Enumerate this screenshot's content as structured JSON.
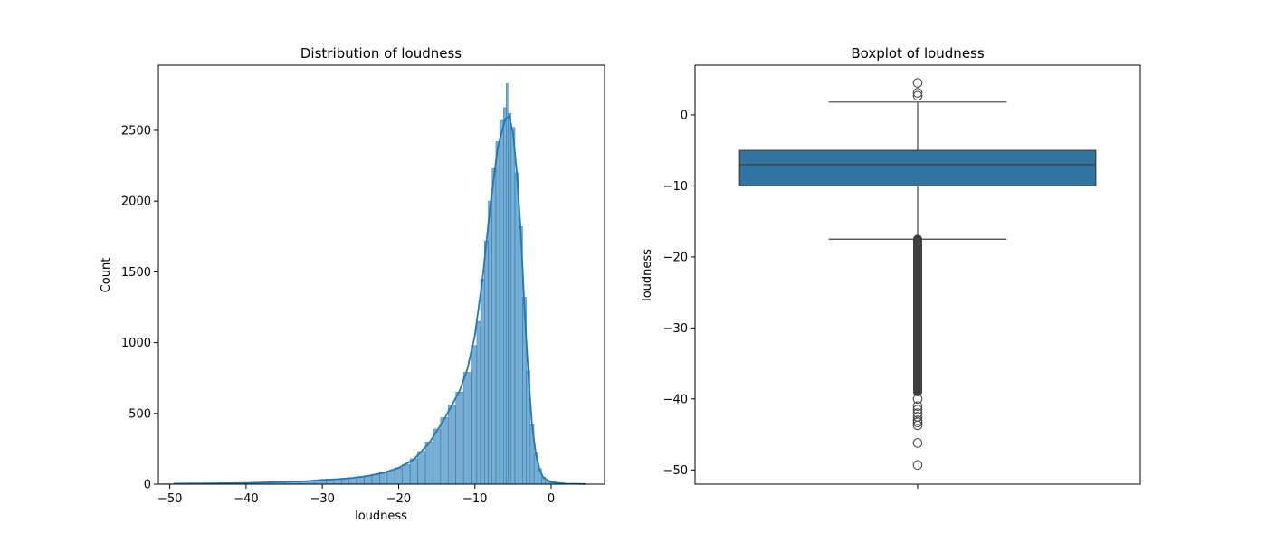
{
  "figure": {
    "background": "#ffffff"
  },
  "chart_data": [
    {
      "type": "histogram",
      "title": "Distribution of loudness",
      "xlabel": "loudness",
      "ylabel": "Count",
      "xlim": [
        -51.5,
        7.0
      ],
      "ylim": [
        0,
        2960
      ],
      "xticks": [
        -50,
        -40,
        -30,
        -20,
        -10,
        0
      ],
      "xtick_labels": [
        "−50",
        "−40",
        "−30",
        "−20",
        "−10",
        "0"
      ],
      "yticks": [
        0,
        500,
        1000,
        1500,
        2000,
        2500
      ],
      "ytick_labels": [
        "0",
        "500",
        "1000",
        "1500",
        "2000",
        "2500"
      ],
      "bar_color": "#1f77b4",
      "kde_color": "#1f77b4",
      "grid": false,
      "legend": "none",
      "bins": [
        {
          "x": -49.5,
          "count": 3
        },
        {
          "x": -46,
          "count": 5
        },
        {
          "x": -42,
          "count": 7
        },
        {
          "x": -38,
          "count": 10
        },
        {
          "x": -36,
          "count": 14
        },
        {
          "x": -34,
          "count": 18
        },
        {
          "x": -32,
          "count": 22
        },
        {
          "x": -30,
          "count": 30
        },
        {
          "x": -29,
          "count": 35
        },
        {
          "x": -28,
          "count": 34
        },
        {
          "x": -27,
          "count": 40
        },
        {
          "x": -26,
          "count": 45
        },
        {
          "x": -25,
          "count": 52
        },
        {
          "x": -24,
          "count": 60
        },
        {
          "x": -23,
          "count": 70
        },
        {
          "x": -22,
          "count": 82
        },
        {
          "x": -21,
          "count": 95
        },
        {
          "x": -20,
          "count": 115
        },
        {
          "x": -19,
          "count": 140
        },
        {
          "x": -18,
          "count": 180
        },
        {
          "x": -17,
          "count": 230
        },
        {
          "x": -16,
          "count": 300
        },
        {
          "x": -15,
          "count": 390
        },
        {
          "x": -14,
          "count": 470
        },
        {
          "x": -13,
          "count": 560
        },
        {
          "x": -12,
          "count": 650
        },
        {
          "x": -11,
          "count": 790
        },
        {
          "x": -10,
          "count": 980
        },
        {
          "x": -9.5,
          "count": 1150
        },
        {
          "x": -9,
          "count": 1450
        },
        {
          "x": -8.5,
          "count": 1720
        },
        {
          "x": -8,
          "count": 2000
        },
        {
          "x": -7.5,
          "count": 2230
        },
        {
          "x": -7,
          "count": 2420
        },
        {
          "x": -6.5,
          "count": 2570
        },
        {
          "x": -6,
          "count": 2660
        },
        {
          "x": -5.8,
          "count": 2830
        },
        {
          "x": -5.5,
          "count": 2620
        },
        {
          "x": -5,
          "count": 2520
        },
        {
          "x": -4.5,
          "count": 2200
        },
        {
          "x": -4,
          "count": 1820
        },
        {
          "x": -3.5,
          "count": 1320
        },
        {
          "x": -3,
          "count": 800
        },
        {
          "x": -2.5,
          "count": 420
        },
        {
          "x": -2,
          "count": 220
        },
        {
          "x": -1.5,
          "count": 110
        },
        {
          "x": -1,
          "count": 50
        },
        {
          "x": -0.5,
          "count": 22
        },
        {
          "x": 0,
          "count": 12
        },
        {
          "x": 1,
          "count": 5
        },
        {
          "x": 2.5,
          "count": 2
        },
        {
          "x": 4.5,
          "count": 1
        }
      ],
      "kde": [
        {
          "x": -49.5,
          "y": 4
        },
        {
          "x": -45,
          "y": 5
        },
        {
          "x": -40,
          "y": 8
        },
        {
          "x": -35,
          "y": 16
        },
        {
          "x": -32,
          "y": 22
        },
        {
          "x": -30,
          "y": 30
        },
        {
          "x": -28,
          "y": 35
        },
        {
          "x": -26,
          "y": 44
        },
        {
          "x": -24,
          "y": 58
        },
        {
          "x": -22,
          "y": 80
        },
        {
          "x": -20,
          "y": 115
        },
        {
          "x": -18,
          "y": 175
        },
        {
          "x": -16,
          "y": 290
        },
        {
          "x": -14,
          "y": 460
        },
        {
          "x": -12,
          "y": 660
        },
        {
          "x": -11,
          "y": 810
        },
        {
          "x": -10,
          "y": 1050
        },
        {
          "x": -9,
          "y": 1450
        },
        {
          "x": -8,
          "y": 1960
        },
        {
          "x": -7,
          "y": 2380
        },
        {
          "x": -6,
          "y": 2580
        },
        {
          "x": -5.5,
          "y": 2600
        },
        {
          "x": -5,
          "y": 2480
        },
        {
          "x": -4.5,
          "y": 2200
        },
        {
          "x": -4,
          "y": 1800
        },
        {
          "x": -3.5,
          "y": 1250
        },
        {
          "x": -3,
          "y": 780
        },
        {
          "x": -2.5,
          "y": 420
        },
        {
          "x": -2,
          "y": 210
        },
        {
          "x": -1.5,
          "y": 100
        },
        {
          "x": -1,
          "y": 45
        },
        {
          "x": 0,
          "y": 15
        },
        {
          "x": 2,
          "y": 3
        },
        {
          "x": 4.5,
          "y": 1
        }
      ]
    },
    {
      "type": "box",
      "title": "Boxplot of loudness",
      "xlabel": "",
      "ylabel": "loudness",
      "ylim": [
        -52.0,
        7.0
      ],
      "yticks": [
        -50,
        -40,
        -30,
        -20,
        -10,
        0
      ],
      "ytick_labels": [
        "−50",
        "−40",
        "−30",
        "−20",
        "−10",
        "0"
      ],
      "box_color": "#3274a1",
      "line_color": "#3f3f3f",
      "grid": false,
      "legend": "none",
      "whisker_low": -17.5,
      "q1": -10.0,
      "median": -7.0,
      "q3": -5.0,
      "whisker_high": 1.8,
      "outliers_high": [
        4.5,
        3.1,
        2.7
      ],
      "outliers_low_dense_range": [
        -39.0,
        -17.5
      ],
      "outliers_low": [
        -40.0,
        -41.0,
        -41.5,
        -42.0,
        -42.5,
        -43.0,
        -43.3,
        -43.7,
        -46.2,
        -49.3
      ]
    }
  ]
}
